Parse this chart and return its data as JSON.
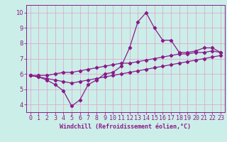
{
  "hours": [
    0,
    1,
    2,
    3,
    4,
    5,
    6,
    7,
    8,
    9,
    10,
    11,
    12,
    13,
    14,
    15,
    16,
    17,
    18,
    19,
    20,
    21,
    22,
    23
  ],
  "main_line": [
    5.9,
    5.8,
    5.6,
    5.3,
    4.9,
    3.9,
    4.3,
    5.3,
    5.6,
    6.0,
    6.1,
    6.5,
    7.7,
    9.4,
    10.0,
    9.0,
    8.2,
    8.2,
    7.4,
    7.4,
    7.5,
    7.7,
    7.7,
    7.4
  ],
  "upper_line": [
    5.9,
    5.9,
    5.9,
    6.0,
    6.1,
    6.1,
    6.2,
    6.3,
    6.4,
    6.5,
    6.6,
    6.7,
    6.7,
    6.8,
    6.9,
    7.0,
    7.1,
    7.2,
    7.3,
    7.3,
    7.4,
    7.4,
    7.5,
    7.4
  ],
  "lower_line": [
    5.9,
    5.8,
    5.7,
    5.6,
    5.5,
    5.4,
    5.5,
    5.6,
    5.7,
    5.8,
    5.9,
    6.0,
    6.1,
    6.2,
    6.3,
    6.4,
    6.5,
    6.6,
    6.7,
    6.8,
    6.9,
    7.0,
    7.1,
    7.2
  ],
  "line_color": "#8b1a8a",
  "bg_color": "#cceee8",
  "grid_color": "#dda0cc",
  "xlabel": "Windchill (Refroidissement éolien,°C)",
  "ylim": [
    3.5,
    10.5
  ],
  "xlim": [
    -0.5,
    23.5
  ],
  "yticks": [
    4,
    5,
    6,
    7,
    8,
    9,
    10
  ],
  "xticks": [
    0,
    1,
    2,
    3,
    4,
    5,
    6,
    7,
    8,
    9,
    10,
    11,
    12,
    13,
    14,
    15,
    16,
    17,
    18,
    19,
    20,
    21,
    22,
    23
  ],
  "xlabel_fontsize": 6.0,
  "tick_fontsize": 6.0,
  "marker_size": 2.2,
  "line_width": 0.9
}
